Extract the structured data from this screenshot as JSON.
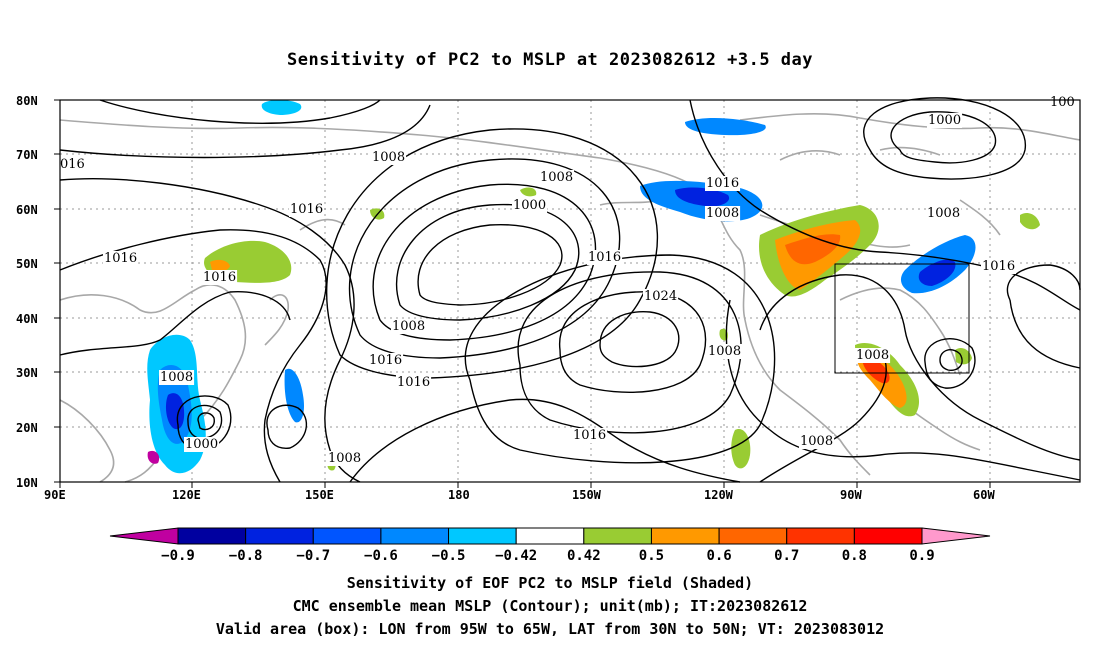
{
  "title": "Sensitivity of PC2 to MSLP at 2023082612 +3.5 day",
  "lat_labels": [
    "80N",
    "70N",
    "60N",
    "50N",
    "40N",
    "30N",
    "20N",
    "10N"
  ],
  "lon_labels": [
    "90E",
    "120E",
    "150E",
    "180",
    "150W",
    "120W",
    "90W",
    "60W"
  ],
  "contour_labels": [
    {
      "id": "c1",
      "text": "1008"
    },
    {
      "id": "c2",
      "text": "1008"
    },
    {
      "id": "c3",
      "text": "1016"
    },
    {
      "id": "c4",
      "text": "1000"
    },
    {
      "id": "c5",
      "text": "1016"
    },
    {
      "id": "c6",
      "text": "1008"
    },
    {
      "id": "c7",
      "text": "1016"
    },
    {
      "id": "c8",
      "text": "1016"
    },
    {
      "id": "c9",
      "text": "1008"
    },
    {
      "id": "c10",
      "text": "1016"
    },
    {
      "id": "c11",
      "text": "1016"
    },
    {
      "id": "c12",
      "text": "1024"
    },
    {
      "id": "c13",
      "text": "1008"
    },
    {
      "id": "c14",
      "text": "1016"
    },
    {
      "id": "c15",
      "text": "1000"
    },
    {
      "id": "c16",
      "text": "1008"
    },
    {
      "id": "c17",
      "text": "1016"
    },
    {
      "id": "c18",
      "text": "1008"
    },
    {
      "id": "c19",
      "text": "1008"
    },
    {
      "id": "c20",
      "text": "1000"
    },
    {
      "id": "c21",
      "text": "1008"
    },
    {
      "id": "c22",
      "text": "1008"
    },
    {
      "id": "c23",
      "text": "1016"
    },
    {
      "id": "c24",
      "text": "016"
    },
    {
      "id": "c25",
      "text": "100"
    }
  ],
  "colorbar": {
    "labels": [
      "-0.9",
      "-0.8",
      "-0.7",
      "-0.6",
      "-0.5",
      "-0.42",
      "0.42",
      "0.5",
      "0.6",
      "0.7",
      "0.8",
      "0.9"
    ],
    "colors": [
      "#0000a0",
      "#0022e0",
      "#0055ff",
      "#0088ff",
      "#00c8ff",
      "#ffffff",
      "#99cc33",
      "#ff9900",
      "#ff6600",
      "#ff3300",
      "#ff0000"
    ],
    "under_color": "#c000a0",
    "over_color": "#ff99cc"
  },
  "captions": {
    "line1": "Sensitivity of EOF PC2 to MSLP field (Shaded)",
    "line2": "CMC ensemble mean MSLP (Contour); unit(mb); IT:2023082612",
    "line3": "Valid area (box): LON from 95W to 65W, LAT from 30N to 50N; VT: 2023083012"
  }
}
